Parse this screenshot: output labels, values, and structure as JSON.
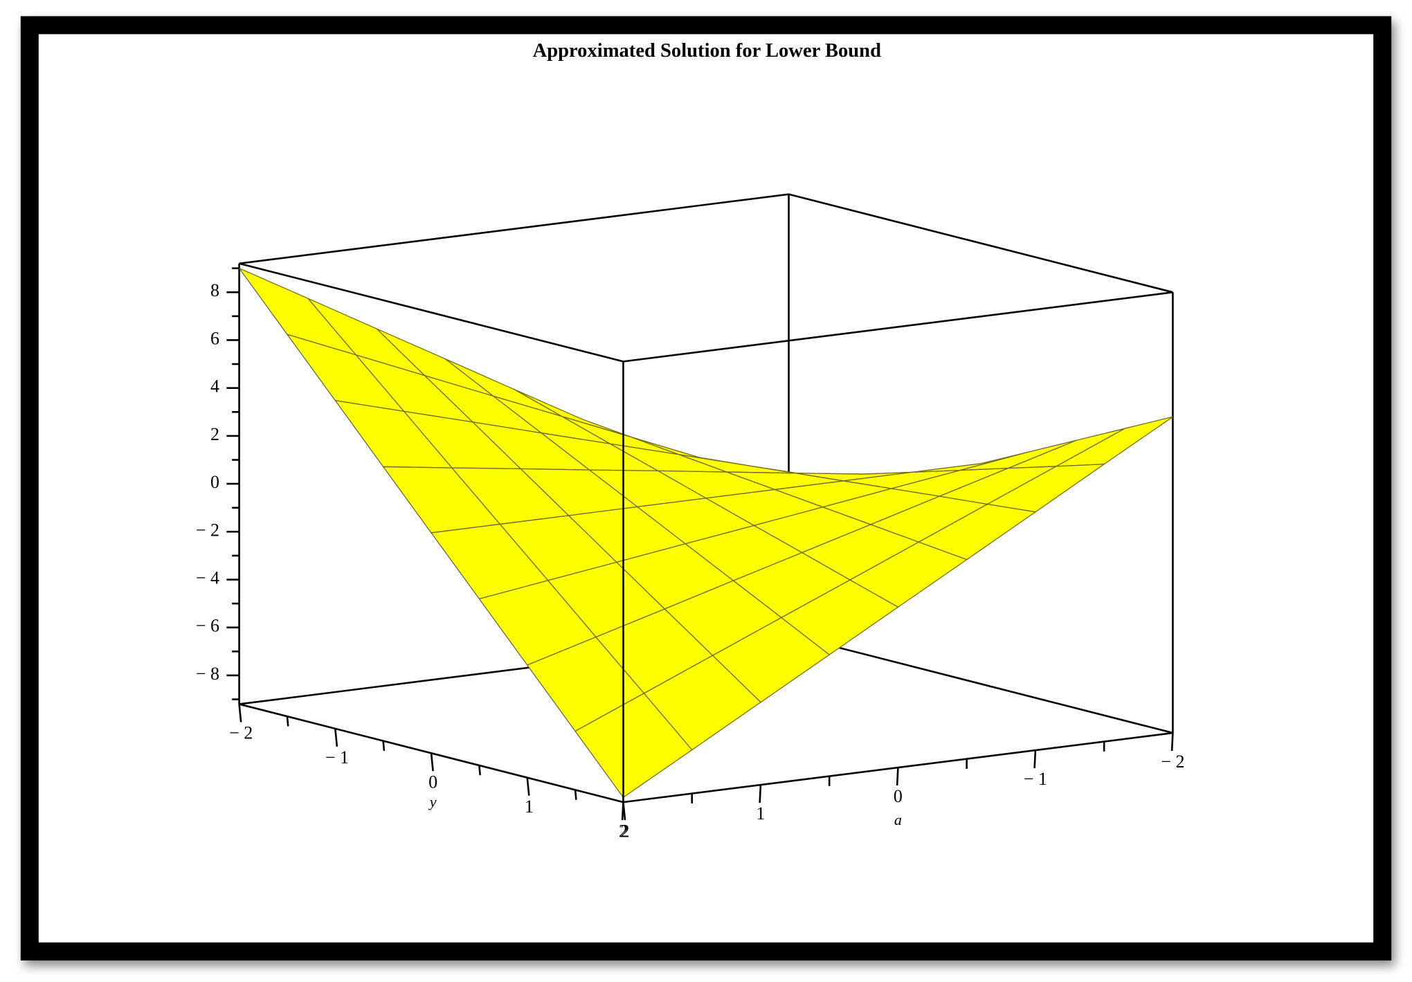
{
  "chart_data": {
    "type": "surface",
    "title": "Approximated Solution for Lower Bound",
    "xlabel": "y",
    "ylabel": "a",
    "x": [
      -2,
      -1.5,
      -1,
      -0.5,
      0,
      0.5,
      1,
      1.5,
      2
    ],
    "y": [
      -2,
      -1.5,
      -1,
      -0.5,
      0,
      0.5,
      1,
      1.5,
      2
    ],
    "z": [
      [
        -4,
        -2.38,
        -0.75,
        0.88,
        2.5,
        4.13,
        5.75,
        7.38,
        9
      ],
      [
        -3,
        -1.78,
        -0.56,
        0.66,
        1.88,
        3.09,
        4.31,
        5.53,
        6.75
      ],
      [
        -2,
        -1.19,
        -0.38,
        0.44,
        1.25,
        2.06,
        2.88,
        3.69,
        4.5
      ],
      [
        -1,
        -0.59,
        -0.19,
        0.22,
        0.63,
        1.03,
        1.44,
        1.84,
        2.25
      ],
      [
        0,
        0,
        0,
        0,
        0,
        0,
        0,
        0,
        0
      ],
      [
        1,
        0.59,
        0.19,
        -0.22,
        -0.63,
        -1.03,
        -1.44,
        -1.84,
        -2.25
      ],
      [
        2,
        1.19,
        0.38,
        -0.44,
        -1.25,
        -2.06,
        -2.88,
        -3.69,
        -4.5
      ],
      [
        3,
        1.78,
        0.56,
        -0.66,
        -1.88,
        -3.09,
        -4.31,
        -5.53,
        -6.75
      ],
      [
        4,
        2.38,
        0.75,
        -0.88,
        -2.5,
        -4.13,
        -5.75,
        -7.38,
        -9
      ]
    ],
    "xlim": [
      -2,
      2
    ],
    "ylim": [
      -2,
      2
    ],
    "zlim": [
      -9.2,
      9.2
    ],
    "xticks": [
      {
        "value": -2,
        "label": "− 2"
      },
      {
        "value": -1,
        "label": "− 1"
      },
      0,
      1,
      2
    ],
    "xminorticks": [
      -1.5,
      -0.5,
      0.5,
      1.5
    ],
    "yticks": [
      {
        "value": -2,
        "label": "− 2"
      },
      {
        "value": -1,
        "label": "− 1"
      },
      0,
      1,
      2
    ],
    "yminorticks": [
      -1.5,
      -0.5,
      0.5,
      1.5
    ],
    "zticks": [
      {
        "value": -8,
        "label": "− 8"
      },
      {
        "value": -6,
        "label": "− 6"
      },
      {
        "value": -4,
        "label": "− 4"
      },
      {
        "value": -2,
        "label": "− 2"
      },
      0,
      2,
      4,
      6,
      8
    ],
    "zminorticks": [
      -9,
      -7,
      -5,
      -3,
      -1,
      1,
      3,
      5,
      7,
      9
    ],
    "color": "#ffff00",
    "back_color": "#8c7a06",
    "grid_color": "#6e6a1e"
  }
}
